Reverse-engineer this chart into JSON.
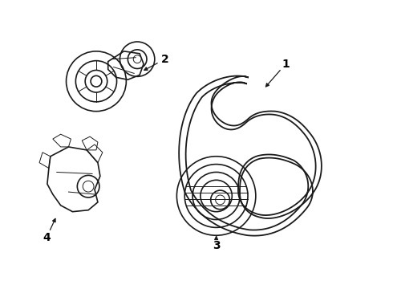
{
  "background_color": "#ffffff",
  "line_color": "#1a1a1a",
  "label_color": "#000000",
  "fig_width": 4.9,
  "fig_height": 3.6,
  "dpi": 100,
  "lw_belt": 1.3,
  "lw_part": 1.2,
  "lw_thin": 0.7,
  "label_fontsize": 10
}
